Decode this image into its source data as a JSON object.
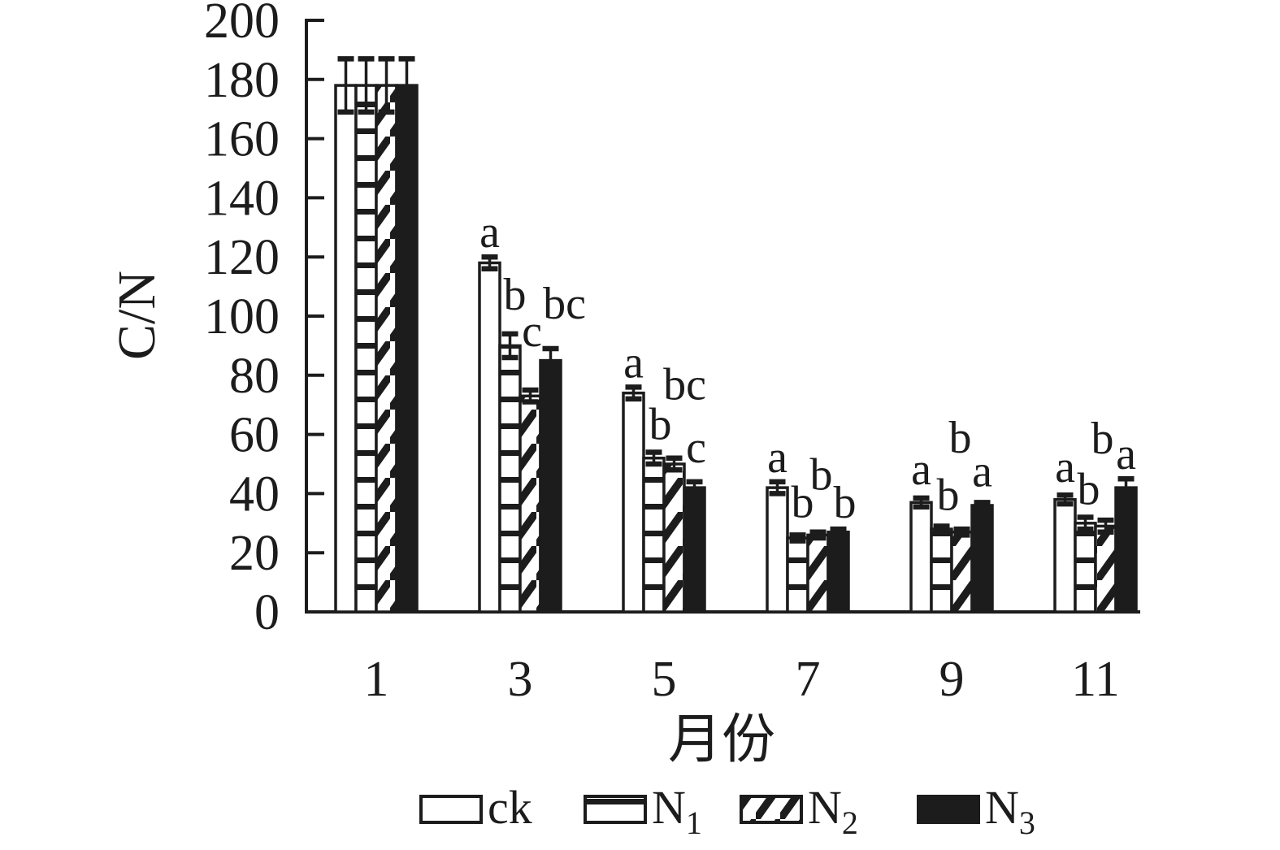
{
  "chart_data": {
    "type": "bar",
    "title": "",
    "ylabel": "C/N",
    "xlabel": "月份",
    "ylim": [
      0,
      200
    ],
    "ytick_step": 20,
    "grid": false,
    "legend_position": "bottom",
    "categories": [
      "1",
      "3",
      "5",
      "7",
      "9",
      "11"
    ],
    "series": [
      {
        "name": "ck",
        "legend": {
          "base": "ck",
          "sub": ""
        },
        "fill_pattern": "plain",
        "values": [
          178,
          118,
          74,
          42,
          37,
          38
        ],
        "errors": [
          9,
          2,
          2,
          2,
          1.5,
          1.5
        ],
        "letters": [
          "",
          "a",
          "a",
          "a",
          "a",
          "a"
        ],
        "letter_offsets": [
          [
            0,
            0
          ],
          [
            0,
            0
          ],
          [
            0,
            0
          ],
          [
            0,
            0
          ],
          [
            0,
            -5
          ],
          [
            0,
            -4
          ]
        ]
      },
      {
        "name": "N1",
        "legend": {
          "base": "N",
          "sub": "1"
        },
        "fill_pattern": "hlines",
        "values": [
          178,
          90,
          52,
          25,
          28,
          30
        ],
        "errors": [
          9,
          4,
          2,
          1,
          1,
          2
        ],
        "letters": [
          "",
          "b",
          "b",
          "b",
          "b",
          "b"
        ],
        "letter_offsets": [
          [
            0,
            0
          ],
          [
            6,
            -18
          ],
          [
            8,
            -4
          ],
          [
            6,
            -10
          ],
          [
            8,
            -8
          ],
          [
            4,
            -4
          ]
        ]
      },
      {
        "name": "N2",
        "legend": {
          "base": "N",
          "sub": "2"
        },
        "fill_pattern": "diag",
        "values": [
          178,
          73,
          50,
          26,
          27,
          29
        ],
        "errors": [
          9,
          2,
          2,
          1,
          1,
          2
        ],
        "letters": [
          "",
          "c",
          "bc",
          "b",
          "b",
          "b"
        ],
        "letter_offsets": [
          [
            0,
            0
          ],
          [
            2,
            -42
          ],
          [
            13,
            -60
          ],
          [
            4,
            -40
          ],
          [
            -2,
            -82
          ],
          [
            -4,
            -70
          ]
        ]
      },
      {
        "name": "N3",
        "legend": {
          "base": "N",
          "sub": "3"
        },
        "fill_pattern": "solid",
        "values": [
          178,
          85,
          42,
          27,
          36,
          42
        ],
        "errors": [
          9,
          4,
          2,
          1,
          1,
          3
        ],
        "letters": [
          "",
          "bc",
          "c",
          "b",
          "a",
          "a"
        ],
        "letter_offsets": [
          [
            0,
            0
          ],
          [
            17,
            -25
          ],
          [
            2,
            -12
          ],
          [
            8,
            -2
          ],
          [
            0,
            -8
          ],
          [
            0,
            0
          ]
        ]
      }
    ],
    "colors": {
      "ink": "#1c1c1c",
      "background": "#ffffff"
    }
  }
}
